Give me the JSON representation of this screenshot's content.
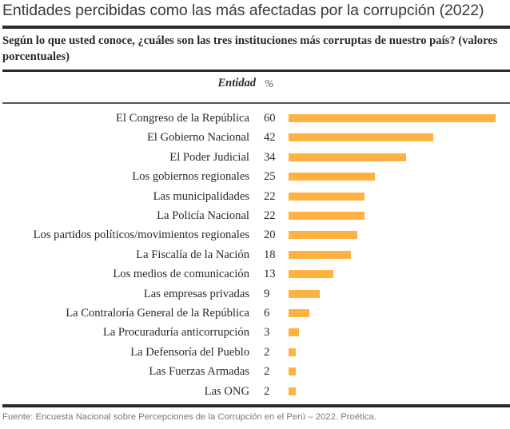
{
  "title": "Entidades percibidas como las más afectadas por la corrupción (2022)",
  "question": "Según lo que usted conoce, ¿cuáles son las tres instituciones más corruptas de nuestro país? (valores porcentuales)",
  "source": "Fuente: Encuesta Nacional sobre Percepciones de la Corrupción en el Perú – 2022. Proética.",
  "colors": {
    "bar": "#ffb142",
    "rule": "#2b2b2b"
  },
  "chart_data": {
    "type": "bar",
    "orientation": "horizontal",
    "title": "Entidades percibidas como las más afectadas por la corrupción (2022)",
    "subtitle": "Según lo que usted conoce, ¿cuáles son las tres instituciones más corruptas de nuestro país? (valores porcentuales)",
    "column_headers": {
      "category": "Entidad",
      "value": "%"
    },
    "xlabel": "",
    "ylabel": "Entidad",
    "xlim": [
      0,
      60
    ],
    "grid": false,
    "legend": "none",
    "categories": [
      "El Congreso de la República",
      "El Gobierno Nacional",
      "El Poder Judicial",
      "Los gobiernos regionales",
      "Las municipalidades",
      "La Policía Nacional",
      "Los partidos políticos/movimientos regionales",
      "La Fiscalía de la Nación",
      "Los medios de comunicación",
      "Las empresas privadas",
      "La Contraloría General de la República",
      "La Procuraduría anticorrupción",
      "La Defensoría del Pueblo",
      "Las Fuerzas Armadas",
      "Las ONG"
    ],
    "values": [
      60,
      42,
      34,
      25,
      22,
      22,
      20,
      18,
      13,
      9,
      6,
      3,
      2,
      2,
      2
    ]
  }
}
